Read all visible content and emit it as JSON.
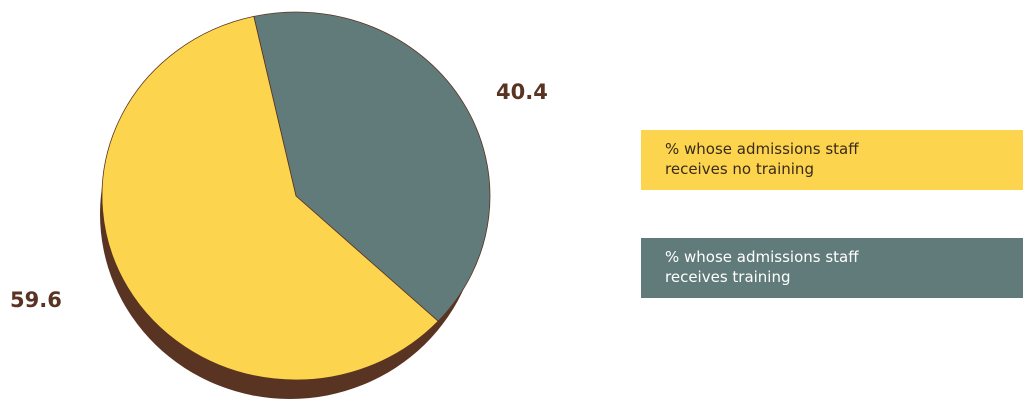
{
  "chart_data": {
    "type": "pie",
    "slices": [
      {
        "label": "% whose admissions staff receives training",
        "value": 40.4,
        "color": "#607b7a",
        "value_label": "40.4"
      },
      {
        "label": "% whose admissions staff receives no training",
        "value": 59.6,
        "color": "#fcd44e",
        "value_label": "59.6"
      }
    ],
    "legend": {
      "placement": "right",
      "items": [
        {
          "label": "% whose admissions staff receives no training",
          "color": "#fcd44e",
          "text_color": "#3a2a1a"
        },
        {
          "label": "% whose admissions staff receives training",
          "color": "#607b7a",
          "text_color": "#ffffff"
        }
      ]
    },
    "shadow_color": "#5a3423",
    "start_direction": "top-slightly-left",
    "style": "3d-tilted"
  }
}
